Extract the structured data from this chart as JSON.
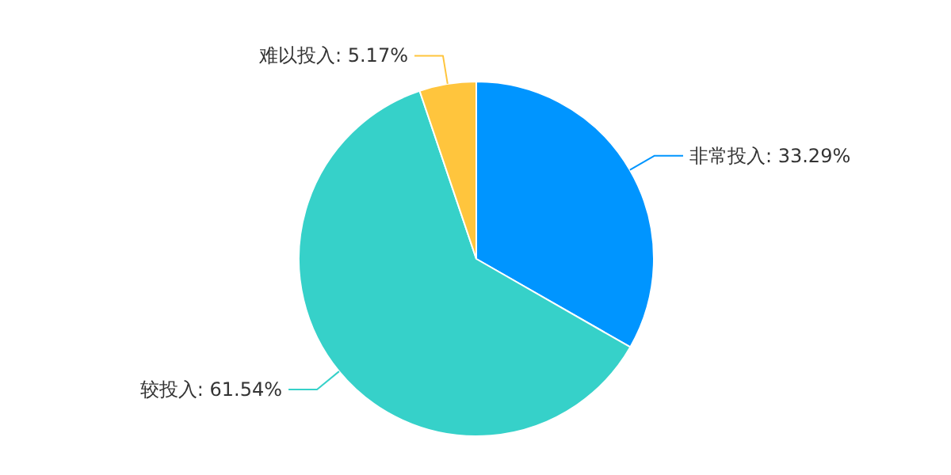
{
  "chart_data": {
    "type": "pie",
    "categories": [
      "非常投入",
      "较投入",
      "难以投入"
    ],
    "values": [
      33.29,
      61.54,
      5.17
    ],
    "value_labels": [
      "33.29%",
      "61.54%",
      "5.17%"
    ],
    "colors": [
      "#0095ff",
      "#36d1c9",
      "#ffc53d"
    ]
  }
}
